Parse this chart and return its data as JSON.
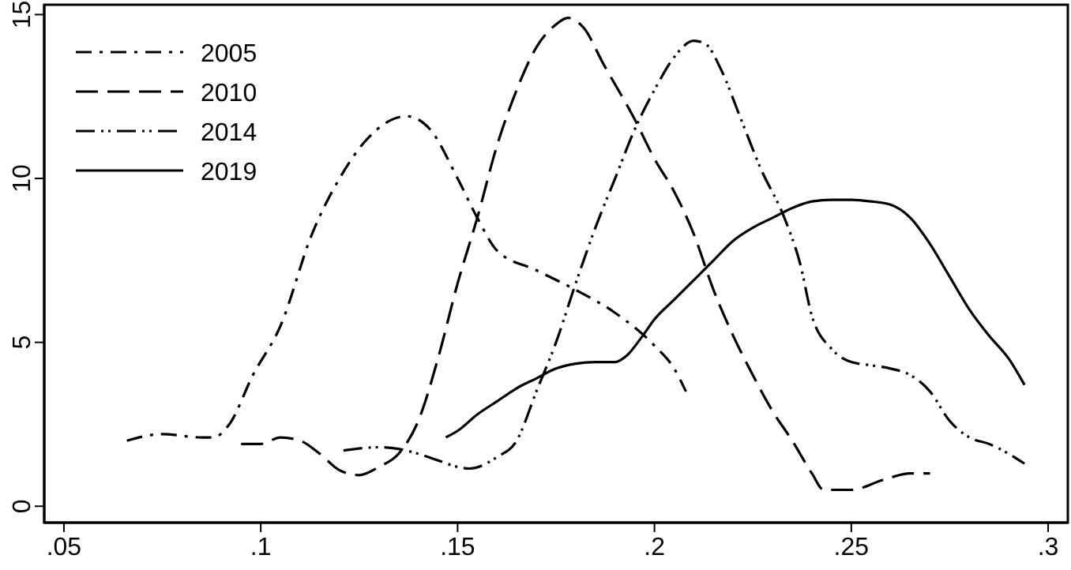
{
  "chart_data": {
    "type": "line",
    "xlim": [
      0.045,
      0.305
    ],
    "ylim": [
      -0.5,
      15.3
    ],
    "xticks": [
      {
        "value": 0.05,
        "label": ".05"
      },
      {
        "value": 0.1,
        "label": ".1"
      },
      {
        "value": 0.15,
        "label": ".15"
      },
      {
        "value": 0.2,
        "label": ".2"
      },
      {
        "value": 0.25,
        "label": ".25"
      },
      {
        "value": 0.3,
        "label": ".3"
      }
    ],
    "yticks": [
      0,
      5,
      10,
      15
    ],
    "grid": false,
    "legend": "top left",
    "series": [
      {
        "name": "2005",
        "color": "#000000",
        "line_style": "dashdot",
        "x": [
          0.066,
          0.075,
          0.085,
          0.088,
          0.092,
          0.098,
          0.105,
          0.113,
          0.12,
          0.127,
          0.137,
          0.143,
          0.15,
          0.155,
          0.16,
          0.17,
          0.18,
          0.19,
          0.2,
          0.205,
          0.208
        ],
        "values": [
          2.0,
          2.2,
          2.1,
          2.1,
          2.5,
          4.0,
          5.5,
          8.3,
          10.0,
          11.2,
          11.9,
          11.5,
          10.0,
          8.8,
          7.8,
          7.2,
          6.6,
          5.9,
          4.9,
          4.2,
          3.5
        ]
      },
      {
        "name": "2010",
        "color": "#000000",
        "line_style": "dashed",
        "x": [
          0.095,
          0.1,
          0.105,
          0.11,
          0.115,
          0.12,
          0.125,
          0.13,
          0.135,
          0.14,
          0.145,
          0.15,
          0.155,
          0.16,
          0.165,
          0.17,
          0.175,
          0.178,
          0.182,
          0.187,
          0.195,
          0.2,
          0.205,
          0.21,
          0.215,
          0.22,
          0.225,
          0.23,
          0.235,
          0.24,
          0.243,
          0.25,
          0.258,
          0.265,
          0.27
        ],
        "values": [
          1.9,
          1.9,
          2.1,
          2.0,
          1.6,
          1.1,
          0.95,
          1.2,
          1.6,
          2.6,
          4.5,
          6.8,
          8.8,
          11.0,
          12.7,
          14.0,
          14.7,
          14.9,
          14.6,
          13.5,
          11.8,
          10.6,
          9.6,
          8.3,
          6.6,
          5.2,
          4.0,
          2.9,
          2.0,
          1.0,
          0.5,
          0.5,
          0.8,
          1.0,
          1.0
        ]
      },
      {
        "name": "2014",
        "color": "#000000",
        "line_style": "dashdotdot",
        "x": [
          0.121,
          0.13,
          0.135,
          0.14,
          0.145,
          0.15,
          0.153,
          0.16,
          0.165,
          0.17,
          0.175,
          0.18,
          0.185,
          0.19,
          0.195,
          0.2,
          0.205,
          0.21,
          0.213,
          0.217,
          0.222,
          0.227,
          0.233,
          0.237,
          0.24,
          0.245,
          0.25,
          0.255,
          0.26,
          0.265,
          0.27,
          0.275,
          0.28,
          0.285,
          0.29,
          0.294
        ],
        "values": [
          1.7,
          1.8,
          1.75,
          1.6,
          1.4,
          1.2,
          1.15,
          1.5,
          2.0,
          3.5,
          5.0,
          6.8,
          8.5,
          10.0,
          11.5,
          12.7,
          13.7,
          14.2,
          14.1,
          13.3,
          11.8,
          10.3,
          8.8,
          7.4,
          5.8,
          4.8,
          4.4,
          4.3,
          4.2,
          4.0,
          3.5,
          2.6,
          2.1,
          1.9,
          1.6,
          1.3
        ]
      },
      {
        "name": "2019",
        "color": "#000000",
        "line_style": "solid",
        "x": [
          0.147,
          0.15,
          0.155,
          0.16,
          0.165,
          0.17,
          0.175,
          0.18,
          0.185,
          0.19,
          0.193,
          0.197,
          0.2,
          0.205,
          0.21,
          0.215,
          0.22,
          0.225,
          0.23,
          0.235,
          0.24,
          0.245,
          0.25,
          0.255,
          0.26,
          0.265,
          0.27,
          0.275,
          0.28,
          0.285,
          0.29,
          0.294
        ],
        "values": [
          2.1,
          2.3,
          2.8,
          3.2,
          3.6,
          3.9,
          4.2,
          4.35,
          4.4,
          4.4,
          4.6,
          5.2,
          5.7,
          6.3,
          6.9,
          7.5,
          8.1,
          8.5,
          8.8,
          9.1,
          9.3,
          9.35,
          9.35,
          9.3,
          9.2,
          8.8,
          8.0,
          7.0,
          6.0,
          5.2,
          4.5,
          3.7
        ]
      }
    ]
  }
}
